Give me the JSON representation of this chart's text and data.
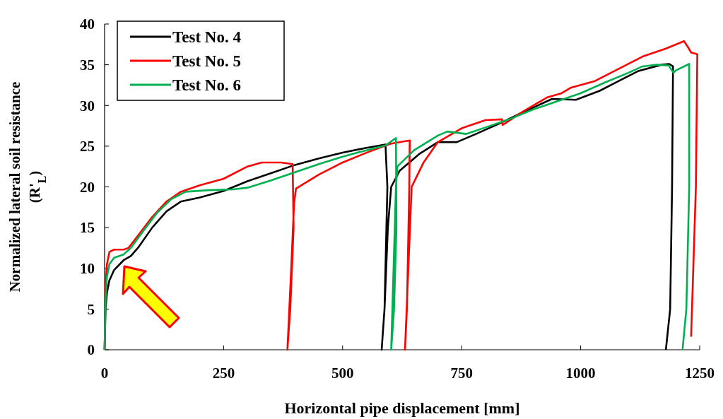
{
  "chart_data": {
    "type": "line",
    "xlabel": "Horizontal  pipe displacement  [mm]",
    "ylabel": "Normalized  lateral soil resistance (R'$_{L}$)",
    "xlim": [
      0,
      1250
    ],
    "xticks": [
      0,
      250,
      500,
      750,
      1000,
      1250
    ],
    "ylim": [
      0,
      40
    ],
    "yticks": [
      0,
      5,
      10,
      15,
      20,
      25,
      30,
      35,
      40
    ],
    "grid": false,
    "legend": "top left",
    "marker": "none",
    "line_style": "solid",
    "series": [
      {
        "name": "Test No. 4",
        "color": "#000000",
        "x": [
          0,
          2,
          5,
          10,
          20,
          40,
          55,
          70,
          100,
          130,
          160,
          200,
          250,
          300,
          350,
          400,
          450,
          500,
          550,
          590,
          594,
          588,
          582,
          588,
          595,
          602,
          620,
          660,
          700,
          740,
          780,
          830,
          880,
          940,
          990,
          1040,
          1080,
          1120,
          1170,
          1186,
          1194,
          1192,
          1188,
          1179
        ],
        "values": [
          0,
          5,
          7,
          8.5,
          9.8,
          11,
          11.5,
          12.5,
          15,
          17,
          18.2,
          18.7,
          19.5,
          20.7,
          21.7,
          22.7,
          23.5,
          24.2,
          24.8,
          25.2,
          20,
          5,
          0,
          5,
          15,
          20,
          22,
          24,
          25.5,
          25.5,
          26.5,
          27.8,
          29.2,
          30.8,
          30.7,
          31.8,
          33,
          34.2,
          35,
          35.1,
          34.8,
          20,
          5,
          0
        ]
      },
      {
        "name": "Test No. 5",
        "color": "#ff0000",
        "x": [
          0,
          2,
          5,
          10,
          20,
          40,
          50,
          70,
          100,
          130,
          160,
          200,
          250,
          300,
          330,
          370,
          395,
          397,
          390,
          384,
          392,
          398,
          402,
          450,
          500,
          550,
          600,
          630,
          641,
          640,
          635,
          631,
          638,
          645,
          670,
          700,
          750,
          800,
          835,
          836,
          880,
          930,
          960,
          980,
          1030,
          1080,
          1130,
          1180,
          1217,
          1225,
          1232,
          1245,
          1242,
          1232
        ],
        "values": [
          0,
          8,
          10.5,
          12,
          12.3,
          12.3,
          12.5,
          14,
          16.3,
          18.2,
          19.4,
          20.2,
          21,
          22.5,
          23,
          23,
          22.8,
          15,
          5,
          0,
          10,
          18,
          19.8,
          21.5,
          23,
          24.2,
          25.3,
          25.6,
          25.7,
          20,
          5,
          0,
          10,
          20,
          23,
          25.5,
          27.2,
          28.2,
          28.3,
          27.6,
          29.3,
          31,
          31.5,
          32.2,
          33,
          34.5,
          36,
          37,
          37.9,
          37.2,
          36.5,
          36.3,
          20,
          1.6
        ]
      },
      {
        "name": "Test No. 6",
        "color": "#00b050",
        "x": [
          0,
          2,
          5,
          10,
          20,
          40,
          55,
          80,
          110,
          140,
          170,
          220,
          270,
          300,
          350,
          400,
          450,
          500,
          550,
          590,
          612,
          613,
          608,
          602,
          606,
          612,
          615,
          650,
          700,
          720,
          760,
          800,
          850,
          900,
          950,
          1000,
          1050,
          1100,
          1130,
          1160,
          1185,
          1195,
          1200,
          1228,
          1228,
          1222,
          1214
        ],
        "values": [
          0,
          6,
          9,
          10.5,
          11.3,
          11.7,
          12.5,
          14.5,
          16.8,
          18.5,
          19.4,
          19.6,
          19.7,
          19.9,
          20.8,
          21.8,
          22.8,
          23.7,
          24.5,
          25.1,
          26,
          15,
          5,
          0,
          8,
          20,
          22.5,
          24.5,
          26.3,
          26.8,
          26.5,
          27.3,
          28.3,
          29.5,
          30.5,
          31.5,
          32.8,
          34,
          34.8,
          35,
          34.9,
          34,
          34.3,
          35.1,
          20,
          5,
          0
        ]
      }
    ]
  }
}
